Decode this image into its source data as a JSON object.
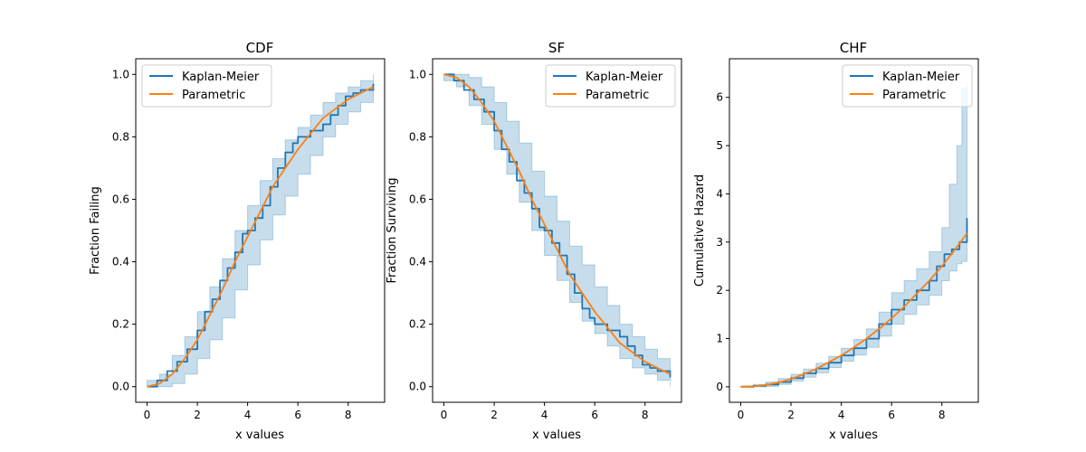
{
  "chart_data": [
    {
      "type": "line",
      "title": "CDF",
      "xlabel": "x values",
      "ylabel": "Fraction Failing",
      "xlim": [
        -0.45,
        9.45
      ],
      "ylim": [
        -0.05,
        1.05
      ],
      "xticks": [
        0,
        2,
        4,
        6,
        8
      ],
      "yticks": [
        0.0,
        0.2,
        0.4,
        0.6,
        0.8,
        1.0
      ],
      "xtick_labels": [
        "0",
        "2",
        "4",
        "6",
        "8"
      ],
      "ytick_labels": [
        "0.0",
        "0.2",
        "0.4",
        "0.6",
        "0.8",
        "1.0"
      ],
      "legend": "top-left",
      "series": [
        {
          "name": "Kaplan-Meier",
          "color": "#1f77b4",
          "style": "step",
          "x": [
            0,
            0.4,
            0.8,
            1.2,
            1.6,
            2.0,
            2.3,
            2.6,
            2.9,
            3.2,
            3.5,
            3.8,
            4.0,
            4.3,
            4.6,
            4.9,
            5.2,
            5.5,
            5.8,
            6.0,
            6.5,
            7.0,
            7.3,
            7.6,
            7.9,
            8.2,
            8.5,
            9.0
          ],
          "y": [
            0.0,
            0.02,
            0.05,
            0.08,
            0.12,
            0.18,
            0.24,
            0.28,
            0.34,
            0.38,
            0.43,
            0.49,
            0.5,
            0.54,
            0.58,
            0.64,
            0.7,
            0.75,
            0.78,
            0.8,
            0.82,
            0.84,
            0.87,
            0.9,
            0.93,
            0.94,
            0.95,
            0.97
          ]
        },
        {
          "name": "Parametric",
          "color": "#ff7f0e",
          "style": "line",
          "x": [
            0,
            0.5,
            1,
            1.5,
            2,
            2.5,
            3,
            3.5,
            4,
            4.5,
            5,
            5.5,
            6,
            6.5,
            7,
            7.5,
            8,
            8.5,
            9
          ],
          "y": [
            0.0,
            0.01,
            0.04,
            0.09,
            0.15,
            0.23,
            0.31,
            0.4,
            0.48,
            0.56,
            0.64,
            0.7,
            0.76,
            0.81,
            0.86,
            0.89,
            0.92,
            0.94,
            0.96
          ]
        }
      ],
      "confidence_band": {
        "color": "#1f77b4",
        "opacity": 0.25,
        "x": [
          0,
          0.5,
          1,
          1.5,
          2,
          2.5,
          3,
          3.5,
          4,
          4.5,
          5,
          5.5,
          6,
          6.5,
          7,
          7.5,
          8,
          8.5,
          9
        ],
        "lower": [
          0.0,
          0.0,
          0.01,
          0.04,
          0.09,
          0.15,
          0.22,
          0.31,
          0.39,
          0.47,
          0.55,
          0.61,
          0.68,
          0.74,
          0.8,
          0.84,
          0.88,
          0.91,
          0.94
        ],
        "upper": [
          0.02,
          0.04,
          0.1,
          0.16,
          0.24,
          0.32,
          0.41,
          0.5,
          0.58,
          0.66,
          0.73,
          0.79,
          0.83,
          0.87,
          0.91,
          0.94,
          0.96,
          0.98,
          1.0
        ]
      }
    },
    {
      "type": "line",
      "title": "SF",
      "xlabel": "x values",
      "ylabel": "Fraction Surviving",
      "xlim": [
        -0.45,
        9.45
      ],
      "ylim": [
        -0.05,
        1.05
      ],
      "xticks": [
        0,
        2,
        4,
        6,
        8
      ],
      "yticks": [
        0.0,
        0.2,
        0.4,
        0.6,
        0.8,
        1.0
      ],
      "xtick_labels": [
        "0",
        "2",
        "4",
        "6",
        "8"
      ],
      "ytick_labels": [
        "0.0",
        "0.2",
        "0.4",
        "0.6",
        "0.8",
        "1.0"
      ],
      "legend": "top-right",
      "series": [
        {
          "name": "Kaplan-Meier",
          "color": "#1f77b4",
          "style": "step",
          "x": [
            0,
            0.4,
            0.8,
            1.2,
            1.6,
            2.0,
            2.3,
            2.6,
            2.9,
            3.2,
            3.5,
            3.8,
            4.0,
            4.3,
            4.6,
            4.9,
            5.2,
            5.5,
            5.8,
            6.0,
            6.5,
            7.0,
            7.3,
            7.6,
            7.9,
            8.2,
            8.5,
            9.0
          ],
          "y": [
            1.0,
            0.98,
            0.95,
            0.92,
            0.88,
            0.82,
            0.76,
            0.72,
            0.66,
            0.62,
            0.57,
            0.51,
            0.5,
            0.46,
            0.42,
            0.36,
            0.3,
            0.25,
            0.22,
            0.2,
            0.18,
            0.16,
            0.13,
            0.1,
            0.07,
            0.06,
            0.05,
            0.03
          ]
        },
        {
          "name": "Parametric",
          "color": "#ff7f0e",
          "style": "line",
          "x": [
            0,
            0.5,
            1,
            1.5,
            2,
            2.5,
            3,
            3.5,
            4,
            4.5,
            5,
            5.5,
            6,
            6.5,
            7,
            7.5,
            8,
            8.5,
            9
          ],
          "y": [
            1.0,
            0.99,
            0.96,
            0.91,
            0.85,
            0.77,
            0.69,
            0.6,
            0.52,
            0.44,
            0.36,
            0.3,
            0.24,
            0.19,
            0.14,
            0.11,
            0.08,
            0.06,
            0.04
          ]
        }
      ],
      "confidence_band": {
        "color": "#1f77b4",
        "opacity": 0.25,
        "x": [
          0,
          0.5,
          1,
          1.5,
          2,
          2.5,
          3,
          3.5,
          4,
          4.5,
          5,
          5.5,
          6,
          6.5,
          7,
          7.5,
          8,
          8.5,
          9
        ],
        "lower": [
          0.98,
          0.96,
          0.9,
          0.84,
          0.76,
          0.68,
          0.59,
          0.5,
          0.42,
          0.34,
          0.27,
          0.21,
          0.17,
          0.13,
          0.09,
          0.06,
          0.04,
          0.02,
          0.0
        ],
        "upper": [
          1.0,
          1.0,
          0.99,
          0.96,
          0.91,
          0.85,
          0.78,
          0.69,
          0.61,
          0.53,
          0.45,
          0.39,
          0.32,
          0.26,
          0.2,
          0.16,
          0.12,
          0.09,
          0.06
        ]
      }
    },
    {
      "type": "line",
      "title": "CHF",
      "xlabel": "x values",
      "ylabel": "Cumulative Hazard",
      "xlim": [
        -0.45,
        9.45
      ],
      "ylim": [
        -0.32,
        6.8
      ],
      "xticks": [
        0,
        2,
        4,
        6,
        8
      ],
      "yticks": [
        0,
        1,
        2,
        3,
        4,
        5,
        6
      ],
      "xtick_labels": [
        "0",
        "2",
        "4",
        "6",
        "8"
      ],
      "ytick_labels": [
        "0",
        "1",
        "2",
        "3",
        "4",
        "5",
        "6"
      ],
      "legend": "top-right",
      "series": [
        {
          "name": "Kaplan-Meier",
          "color": "#1f77b4",
          "style": "step",
          "x": [
            0,
            0.5,
            1.0,
            1.5,
            2.0,
            2.5,
            3.0,
            3.5,
            4.0,
            4.5,
            5.0,
            5.5,
            6.0,
            6.5,
            7.0,
            7.5,
            7.8,
            8.1,
            8.4,
            8.7,
            9.0
          ],
          "y": [
            0.0,
            0.02,
            0.05,
            0.1,
            0.18,
            0.28,
            0.38,
            0.5,
            0.65,
            0.8,
            1.0,
            1.3,
            1.6,
            1.8,
            2.0,
            2.2,
            2.5,
            2.75,
            2.85,
            3.0,
            3.5
          ]
        },
        {
          "name": "Parametric",
          "color": "#ff7f0e",
          "style": "line",
          "x": [
            0,
            0.5,
            1,
            1.5,
            2,
            2.5,
            3,
            3.5,
            4,
            4.5,
            5,
            5.5,
            6,
            6.5,
            7,
            7.5,
            8,
            8.5,
            9
          ],
          "y": [
            0.0,
            0.01,
            0.04,
            0.09,
            0.16,
            0.26,
            0.37,
            0.51,
            0.65,
            0.82,
            1.0,
            1.2,
            1.42,
            1.66,
            1.93,
            2.2,
            2.5,
            2.83,
            3.18
          ]
        }
      ],
      "confidence_band": {
        "color": "#1f77b4",
        "opacity": 0.25,
        "x": [
          0,
          0.5,
          1,
          1.5,
          2,
          2.5,
          3,
          3.5,
          4,
          4.5,
          5,
          5.5,
          6,
          6.5,
          7,
          7.5,
          8,
          8.3,
          8.6,
          8.8,
          9
        ],
        "lower": [
          0.0,
          0.0,
          0.01,
          0.05,
          0.12,
          0.2,
          0.29,
          0.4,
          0.53,
          0.66,
          0.82,
          1.05,
          1.3,
          1.5,
          1.7,
          1.9,
          2.2,
          2.4,
          2.55,
          2.6,
          2.6
        ],
        "upper": [
          0.02,
          0.05,
          0.1,
          0.17,
          0.26,
          0.37,
          0.49,
          0.63,
          0.8,
          0.98,
          1.2,
          1.55,
          1.95,
          2.2,
          2.45,
          2.8,
          3.3,
          4.2,
          5.0,
          6.2,
          6.3
        ]
      }
    }
  ]
}
